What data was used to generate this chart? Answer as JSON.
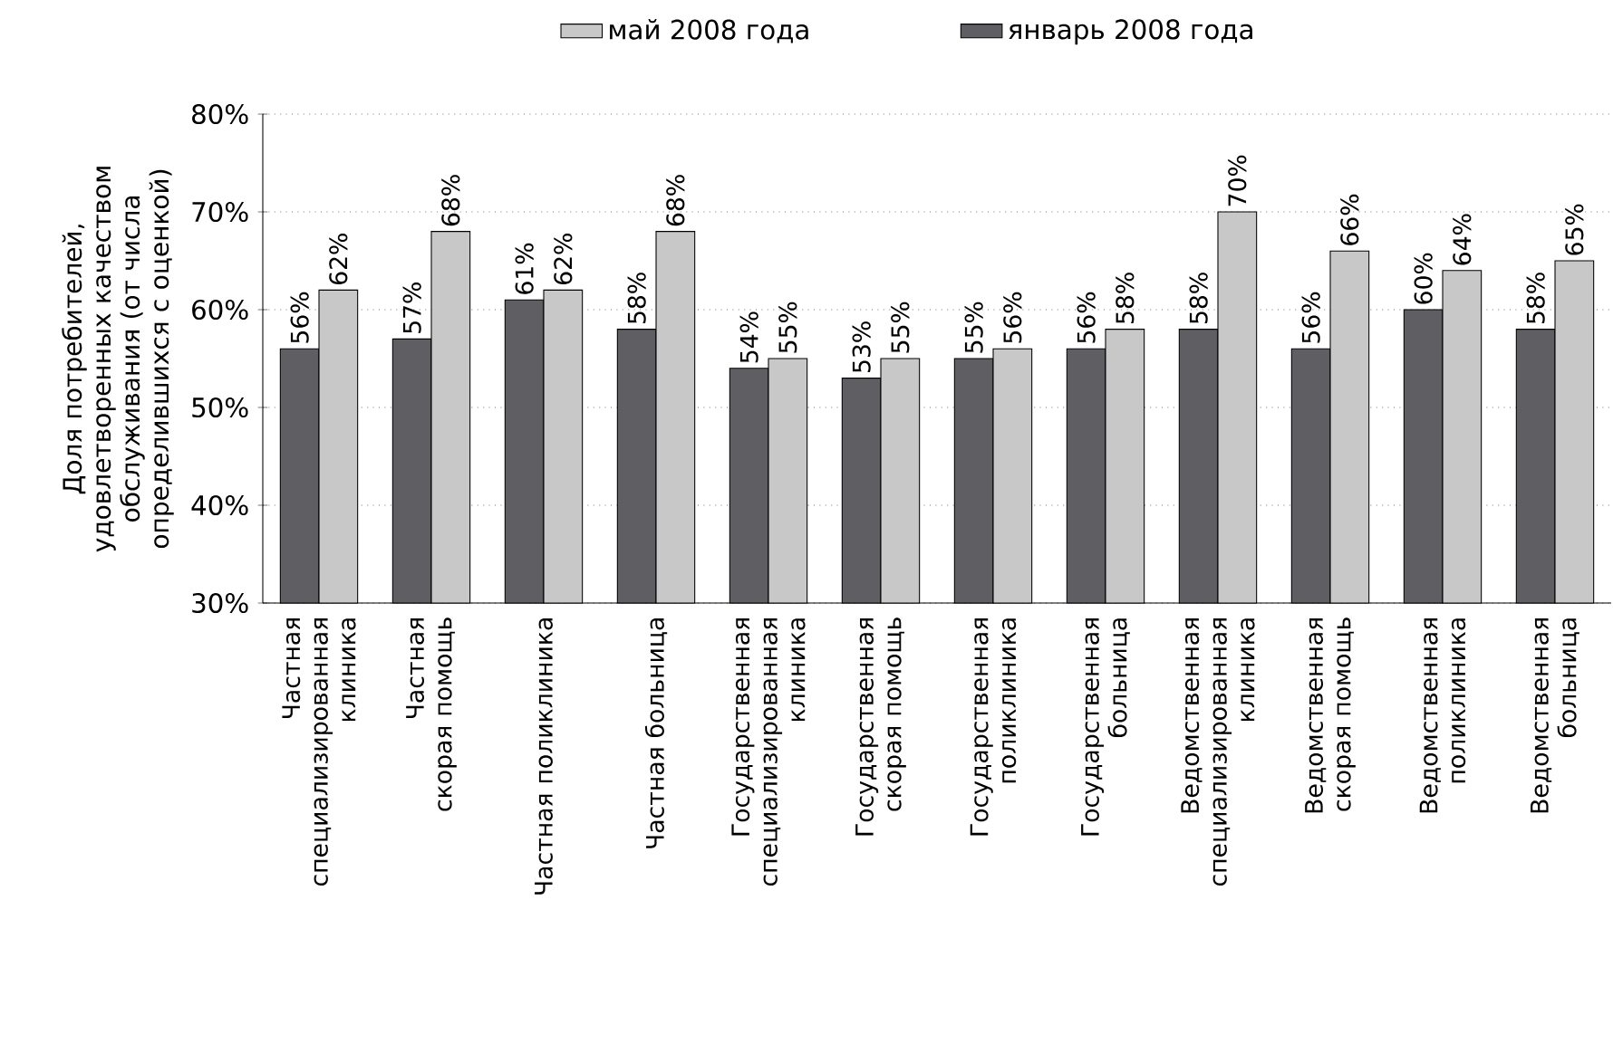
{
  "chart_data": {
    "type": "bar",
    "ylabel": "Доля потребителей, удовлетворенных качеством обслуживания (от числа определившихся с оценкой)",
    "categories": [
      "Частная специализированная клиника",
      "Частная скорая помощь",
      "Частная поликлиника",
      "Частная больница",
      "Государственная специализированная клиника",
      "Государственная скорая помощь",
      "Государственная поликлиника",
      "Государственная больница",
      "Ведомственная специализированная клиника",
      "Ведомственная скорая помощь",
      "Ведомственная поликлиника",
      "Ведомственная больница"
    ],
    "series": [
      {
        "name": "январь 2008 года",
        "color": "#5f5f63",
        "values": [
          56,
          57,
          61,
          58,
          54,
          53,
          55,
          56,
          58,
          56,
          60,
          58
        ],
        "value_labels": [
          "56%",
          "57%",
          "61%",
          "58%",
          "54%",
          "53%",
          "55%",
          "56%",
          "58%",
          "56%",
          "60%",
          "58%"
        ]
      },
      {
        "name": "май 2008 года",
        "color": "#c8c8c8",
        "values": [
          62,
          68,
          62,
          68,
          55,
          55,
          56,
          58,
          70,
          66,
          64,
          65
        ],
        "value_labels": [
          "62%",
          "68%",
          "62%",
          "68%",
          "55%",
          "55%",
          "56%",
          "58%",
          "70%",
          "66%",
          "64%",
          "65%"
        ]
      }
    ],
    "ylim": [
      30,
      80
    ],
    "yticks": [
      {
        "value": 30,
        "label": "30%"
      },
      {
        "value": 40,
        "label": "40%"
      },
      {
        "value": 50,
        "label": "50%"
      },
      {
        "value": 60,
        "label": "60%"
      },
      {
        "value": 70,
        "label": "70%"
      },
      {
        "value": 80,
        "label": "80%"
      }
    ],
    "grid": "y",
    "legend": "top"
  }
}
